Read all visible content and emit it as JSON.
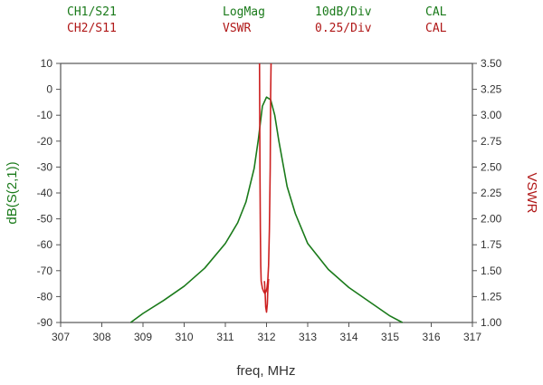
{
  "header": {
    "rows": [
      {
        "channel": "CH1/S21",
        "format": "LogMag",
        "scale": "10dB/Div",
        "cal": "CAL",
        "color": "#1a7a1a"
      },
      {
        "channel": "CH2/S11",
        "format": "VSWR",
        "scale": "0.25/Div",
        "cal": "CAL",
        "color": "#b01818"
      }
    ]
  },
  "chart_data": {
    "type": "line",
    "xlabel": "freq, MHz",
    "ylabel": "dB(S(2,1))",
    "y2label": "VSWR",
    "xlim": [
      307,
      317
    ],
    "ylim": [
      -90,
      10
    ],
    "y2lim": [
      1.0,
      3.5
    ],
    "x_ticks": [
      "307",
      "308",
      "309",
      "310",
      "311",
      "312",
      "313",
      "314",
      "315",
      "316",
      "317"
    ],
    "y_ticks": [
      "10",
      "0",
      "-10",
      "-20",
      "-30",
      "-40",
      "-50",
      "-60",
      "-70",
      "-80",
      "-90"
    ],
    "y2_ticks": [
      "3.50",
      "3.25",
      "3.00",
      "2.75",
      "2.50",
      "2.25",
      "2.00",
      "1.75",
      "1.50",
      "1.25",
      "1.00"
    ],
    "grid": false,
    "axis_colors": {
      "left": "#1a7a1a",
      "right": "#b01818"
    },
    "series": [
      {
        "axis": "left",
        "color": "#1a7a1a",
        "x": [
          308.7,
          309.0,
          309.5,
          310.0,
          310.5,
          311.0,
          311.3,
          311.5,
          311.7,
          311.8,
          311.9,
          312.0,
          312.1,
          312.2,
          312.3,
          312.5,
          312.7,
          313.0,
          313.5,
          314.0,
          314.5,
          315.0,
          315.3
        ],
        "y": [
          -90,
          -86.5,
          -81.5,
          -76,
          -69,
          -59.5,
          -51.5,
          -43.5,
          -30.5,
          -19.5,
          -6.5,
          -3,
          -4,
          -10,
          -20,
          -37.5,
          -48,
          -59.5,
          -69.5,
          -76.5,
          -82,
          -87.5,
          -90
        ]
      },
      {
        "axis": "right",
        "color": "#cc2020",
        "x": [
          311.83,
          311.84,
          311.85,
          311.86,
          311.87,
          311.9,
          311.93,
          311.96,
          311.99,
          312.01,
          312.03,
          312.05,
          312.07,
          312.09,
          312.1,
          312.11
        ],
        "y": [
          3.5,
          2.5,
          1.9,
          1.55,
          1.4,
          1.33,
          1.3,
          1.28,
          1.3,
          1.33,
          1.4,
          1.55,
          1.9,
          2.5,
          3.2,
          3.5
        ]
      },
      {
        "axis": "right",
        "color": "#cc2020",
        "x": [
          311.95,
          311.97,
          311.98,
          312.0,
          312.02,
          312.03,
          312.05
        ],
        "y": [
          1.4,
          1.25,
          1.15,
          1.1,
          1.18,
          1.3,
          1.42
        ]
      }
    ]
  }
}
